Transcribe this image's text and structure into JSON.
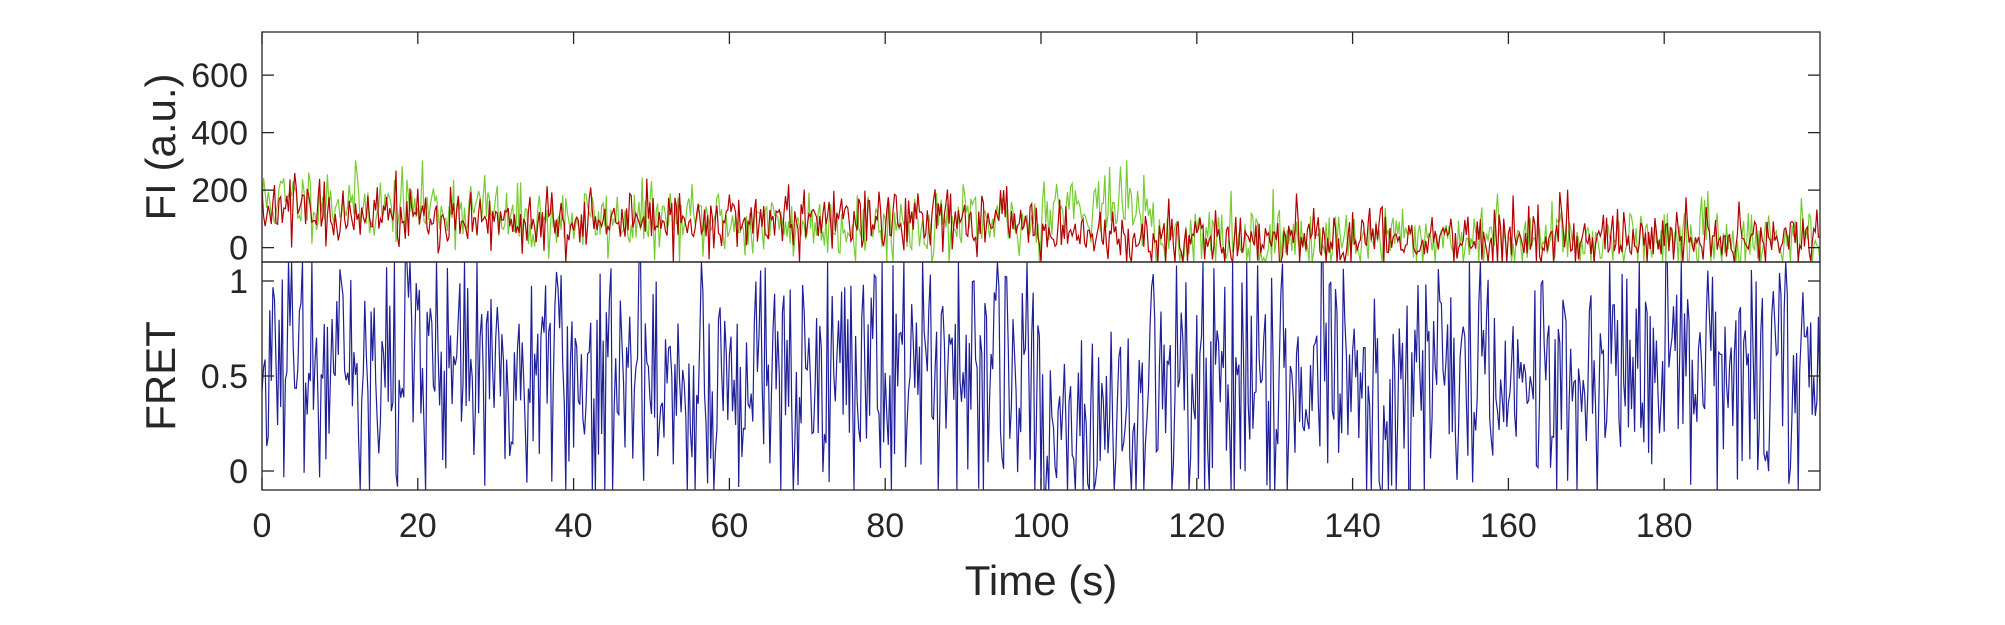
{
  "chart_data": [
    {
      "type": "line",
      "panel": "top",
      "ylabel": "FI (a.u.)",
      "xlabel": "",
      "xlim": [
        0,
        200
      ],
      "ylim": [
        -50,
        750
      ],
      "yticks": [
        0,
        200,
        400,
        600
      ],
      "ytick_labels": [
        "0",
        "200",
        "400",
        "600"
      ],
      "grid": false,
      "series": [
        {
          "color": "#77cc33",
          "x_start": 0,
          "x_step": 0.2,
          "segments": [
            {
              "x_from": 0,
              "x_to": 12,
              "mean": 165
            },
            {
              "x_from": 12,
              "x_to": 30,
              "mean": 140
            },
            {
              "x_from": 30,
              "x_to": 60,
              "mean": 95
            },
            {
              "x_from": 60,
              "x_to": 100,
              "mean": 80
            },
            {
              "x_from": 100,
              "x_to": 114,
              "mean": 150
            },
            {
              "x_from": 114,
              "x_to": 200,
              "mean": 30
            }
          ],
          "noise_sd": 60
        },
        {
          "color": "#b30000",
          "x_start": 0,
          "x_step": 0.2,
          "segments": [
            {
              "x_from": 0,
              "x_to": 12,
              "mean": 130
            },
            {
              "x_from": 12,
              "x_to": 30,
              "mean": 110
            },
            {
              "x_from": 30,
              "x_to": 60,
              "mean": 85
            },
            {
              "x_from": 60,
              "x_to": 100,
              "mean": 95
            },
            {
              "x_from": 100,
              "x_to": 114,
              "mean": 45
            },
            {
              "x_from": 114,
              "x_to": 200,
              "mean": 30
            }
          ],
          "noise_sd": 55
        }
      ]
    },
    {
      "type": "line",
      "panel": "bottom",
      "ylabel": "FRET",
      "xlabel": "Time (s)",
      "xlim": [
        0,
        200
      ],
      "ylim": [
        -0.1,
        1.1
      ],
      "yticks": [
        0,
        0.5,
        1
      ],
      "ytick_labels": [
        "0",
        "0.5",
        "1"
      ],
      "xticks": [
        0,
        20,
        40,
        60,
        80,
        100,
        120,
        140,
        160,
        180
      ],
      "xtick_labels": [
        "0",
        "20",
        "40",
        "60",
        "80",
        "100",
        "120",
        "140",
        "160",
        "180"
      ],
      "grid": false,
      "series": [
        {
          "color": "#1f1f99",
          "x_start": 0,
          "x_step": 0.2,
          "segments": [
            {
              "x_from": 0,
              "x_to": 12,
              "mean": 0.5
            },
            {
              "x_from": 12,
              "x_to": 30,
              "mean": 0.55
            },
            {
              "x_from": 30,
              "x_to": 60,
              "mean": 0.5
            },
            {
              "x_from": 60,
              "x_to": 100,
              "mean": 0.55
            },
            {
              "x_from": 100,
              "x_to": 114,
              "mean": 0.2
            },
            {
              "x_from": 114,
              "x_to": 200,
              "mean": 0.5
            }
          ],
          "noise_sd": 0.35
        }
      ]
    }
  ],
  "colors": {
    "axes": "#262626",
    "background": "#ffffff"
  }
}
